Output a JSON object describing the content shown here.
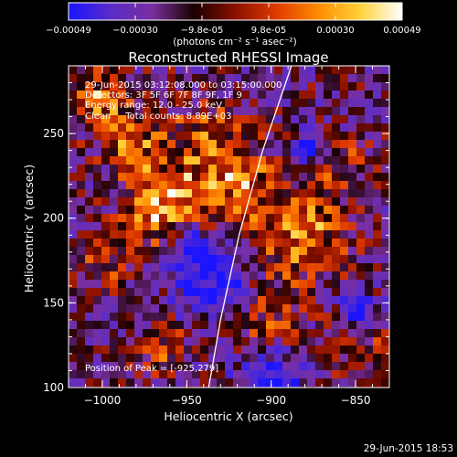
{
  "colorbar": {
    "ticks": [
      "-0.00049",
      "-0.00030",
      "-9.8e-05",
      "9.8e-05",
      "0.00030",
      "0.00049"
    ],
    "units": "(photons cm⁻² s⁻¹ asec⁻²)",
    "colors": [
      "#1a14ff",
      "#5a2cc8",
      "#7a2fa0",
      "#1a0000",
      "#8a1000",
      "#e23b00",
      "#ff8c00",
      "#ffd23a",
      "#ffffff"
    ]
  },
  "plot": {
    "title": "Reconstructed RHESSI Image",
    "xlabel": "Heliocentric X (arcsec)",
    "ylabel": "Heliocentric Y (arcsec)",
    "xlim": [
      -1020,
      -830
    ],
    "ylim": [
      100,
      290
    ],
    "xticks": [
      {
        "value": -1000,
        "label": "−1000"
      },
      {
        "value": -950,
        "label": "−950"
      },
      {
        "value": -900,
        "label": "−900"
      },
      {
        "value": -850,
        "label": "−850"
      }
    ],
    "yticks": [
      {
        "value": 100,
        "label": "100"
      },
      {
        "value": 150,
        "label": "150"
      },
      {
        "value": 200,
        "label": "200"
      },
      {
        "value": 250,
        "label": "250"
      }
    ],
    "limb_curve": [
      [
        -937,
        100
      ],
      [
        -930,
        140
      ],
      [
        -919,
        190
      ],
      [
        -905,
        240
      ],
      [
        -888,
        290
      ]
    ],
    "annotations": {
      "line1": "29-Jun-2015 03:12:08.000 to 03:15:00.000",
      "line2": "Detectors: 3F 5F 6F 7F 8F 9F, 1F 9",
      "line3": "Energy range: 12.0 - 25.0 keV",
      "line4": "Clean     Total counts: 8.89E+03",
      "position": "Position of Peak = [-925,279]"
    }
  },
  "footer": {
    "timestamp": "29-Jun-2015 18:53"
  }
}
